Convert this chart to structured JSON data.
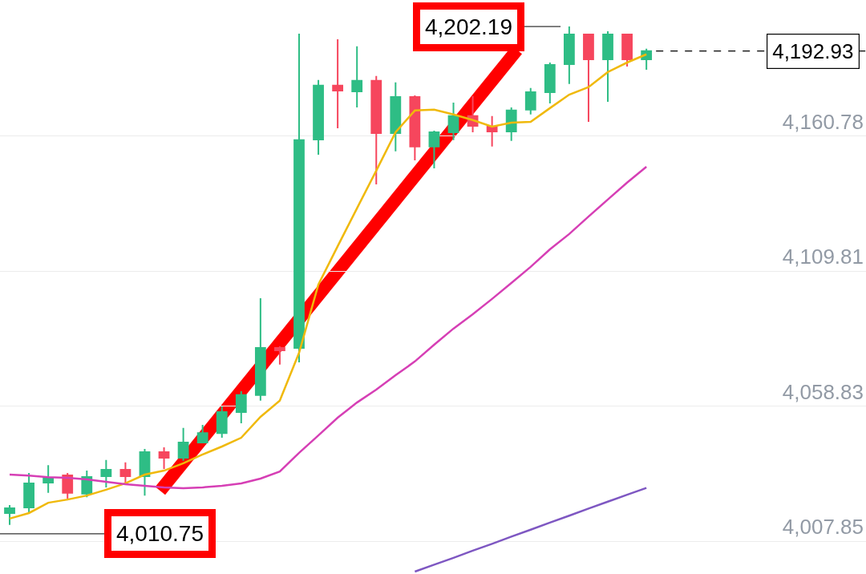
{
  "chart_data": {
    "type": "candlestick",
    "categories": [
      null,
      null,
      null,
      null,
      null,
      null,
      null,
      null,
      null,
      null,
      null,
      null,
      null,
      null,
      null,
      null,
      null,
      null,
      null,
      null,
      null,
      null,
      null,
      null,
      null,
      null,
      null,
      null,
      null,
      null,
      null,
      null,
      null,
      null
    ],
    "ohlc": [
      [
        4018.6,
        4021.6,
        4014.1,
        4020.4
      ],
      [
        4020.7,
        4033.7,
        4018.6,
        4029.8
      ],
      [
        4030.1,
        4036.7,
        4026.2,
        4031.9
      ],
      [
        4032.8,
        4033.7,
        4024.0,
        4026.2
      ],
      [
        4025.9,
        4034.6,
        4024.6,
        4032.2
      ],
      [
        4032.5,
        4038.6,
        4028.3,
        4034.9
      ],
      [
        4034.9,
        4037.7,
        4029.2,
        4032.5
      ],
      [
        4032.5,
        4042.8,
        4025.2,
        4041.6
      ],
      [
        4041.6,
        4043.4,
        4035.2,
        4039.5
      ],
      [
        4039.5,
        4050.7,
        4038.3,
        4045.2
      ],
      [
        4045.2,
        4051.9,
        4044.9,
        4048.8
      ],
      [
        4048.8,
        4058.8,
        4047.0,
        4056.7
      ],
      [
        4056.7,
        4064.6,
        4052.5,
        4063.1
      ],
      [
        4063.1,
        4099.7,
        4061.0,
        4080.9
      ],
      [
        4080.9,
        4081.5,
        4074.6,
        4080.0
      ],
      [
        4080.9,
        4199.5,
        4075.5,
        4159.3
      ],
      [
        4159.6,
        4182.0,
        4153.8,
        4179.9
      ],
      [
        4179.9,
        4197.4,
        4163.8,
        4178.0
      ],
      [
        4177.7,
        4194.7,
        4171.7,
        4181.7
      ],
      [
        4181.7,
        4183.5,
        4142.6,
        4162.0
      ],
      [
        4162.0,
        4181.1,
        4155.1,
        4175.6
      ],
      [
        4175.6,
        4176.2,
        4151.7,
        4156.9
      ],
      [
        4156.9,
        4162.9,
        4148.7,
        4162.3
      ],
      [
        4162.3,
        4173.5,
        4159.3,
        4168.4
      ],
      [
        4168.4,
        4175.9,
        4162.3,
        4164.7
      ],
      [
        4164.4,
        4168.4,
        4156.9,
        4162.6
      ],
      [
        4162.6,
        4171.7,
        4159.0,
        4170.5
      ],
      [
        4170.8,
        4179.0,
        4169.0,
        4177.4
      ],
      [
        4177.4,
        4188.6,
        4173.2,
        4187.7
      ],
      [
        4188.0,
        4202.19,
        4180.5,
        4199.2
      ],
      [
        4199.2,
        4199.2,
        4166.2,
        4189.8
      ],
      [
        4189.8,
        4200.4,
        4173.8,
        4199.2
      ],
      [
        4199.2,
        4199.2,
        4187.1,
        4189.8
      ],
      [
        4189.8,
        4193.8,
        4185.9,
        4192.93
      ]
    ],
    "colors": [
      "#2ebd85",
      "#2ebd85",
      "#2ebd85",
      "#f6465d",
      "#2ebd85",
      "#2ebd85",
      "#f6465d",
      "#2ebd85",
      "#f6465d",
      "#2ebd85",
      "#2ebd85",
      "#2ebd85",
      "#2ebd85",
      "#2ebd85",
      "#f6465d",
      "#2ebd85",
      "#2ebd85",
      "#f6465d",
      "#2ebd85",
      "#f6465d",
      "#2ebd85",
      "#f6465d",
      "#2ebd85",
      "#2ebd85",
      "#f6465d",
      "#f6465d",
      "#2ebd85",
      "#2ebd85",
      "#2ebd85",
      "#2ebd85",
      "#f6465d",
      "#2ebd85",
      "#f6465d",
      "#2ebd85"
    ],
    "series": [
      {
        "type": "line",
        "color": "#f0b90b",
        "values": [
          4016.5,
          4018.6,
          4022.5,
          4023.7,
          4025.2,
          4027.4,
          4029.8,
          4033.1,
          4034.6,
          4037.4,
          4040.7,
          4043.7,
          4047.0,
          4054.9,
          4061.0,
          4079.1,
          4104.8,
          4119.3,
          4133.6,
          4147.8,
          4162.3,
          4170.5,
          4170.8,
          4169.0,
          4166.9,
          4164.4,
          4165.9,
          4166.2,
          4171.4,
          4176.5,
          4179.3,
          4185.0,
          4188.6,
          4191.7
        ]
      },
      {
        "type": "line",
        "color": "#d63fb5",
        "values": [
          4033.1,
          4032.7,
          4032.1,
          4031.9,
          4031.3,
          4030.4,
          4029.5,
          4028.9,
          4028.3,
          4028.0,
          4028.3,
          4028.9,
          4029.8,
          4031.6,
          4034.3,
          4041.3,
          4047.9,
          4054.6,
          4060.3,
          4065.2,
          4070.6,
          4075.8,
          4082.1,
          4088.2,
          4093.6,
          4099.4,
          4105.4,
          4111.5,
          4118.1,
          4123.9,
          4130.5,
          4136.9,
          4143.3,
          4149.3
        ]
      },
      {
        "type": "line",
        "color": "#7e57c2",
        "values": [
          null,
          null,
          null,
          null,
          null,
          null,
          null,
          null,
          null,
          null,
          null,
          null,
          null,
          null,
          null,
          null,
          null,
          null,
          null,
          null,
          null,
          3996.5,
          3999.1,
          4001.7,
          4004.4,
          4007.0,
          4009.7,
          4012.3,
          4015.0,
          4017.6,
          4020.3,
          4022.9,
          4025.5,
          4028.1
        ]
      }
    ],
    "ylim": [
      3995.6,
      4212.2
    ],
    "yticks": [
      {
        "value": 4007.85,
        "label": "4,007.85"
      },
      {
        "value": 4058.83,
        "label": "4,058.83"
      },
      {
        "value": 4109.81,
        "label": "4,109.81"
      },
      {
        "value": 4160.78,
        "label": "4,160.78"
      }
    ],
    "tick_labels": "y",
    "grid": "y",
    "ref_lines": [
      {
        "axis": "y",
        "value": 4192.93,
        "label": "4,192.93",
        "line_style": "dashed",
        "color": "#000000"
      }
    ],
    "annotations": [
      "4,202.19",
      "4,010.75"
    ]
  }
}
